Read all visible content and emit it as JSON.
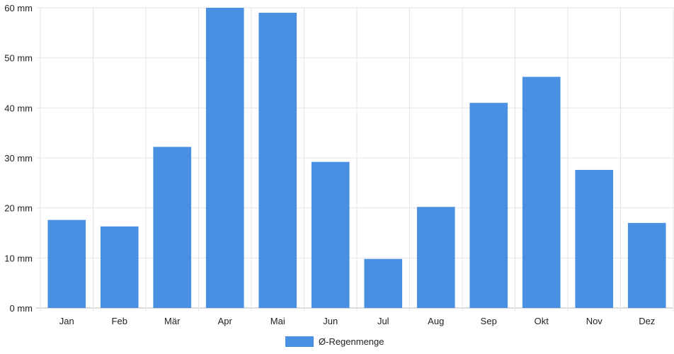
{
  "chart_data": {
    "type": "bar",
    "categories": [
      "Jan",
      "Feb",
      "Mär",
      "Apr",
      "Mai",
      "Jun",
      "Jul",
      "Aug",
      "Sep",
      "Okt",
      "Nov",
      "Dez"
    ],
    "series": [
      {
        "name": "Ø-Regenmenge",
        "color": "#4a90e2",
        "values": [
          17.6,
          16.3,
          32.2,
          60.0,
          59.0,
          29.2,
          9.8,
          20.2,
          41.0,
          46.2,
          27.6,
          17.0
        ]
      }
    ],
    "y_ticks": [
      "0 mm",
      "10 mm",
      "20 mm",
      "30 mm",
      "40 mm",
      "50 mm",
      "60 mm"
    ],
    "ylim": [
      0,
      60
    ],
    "y_unit": "mm",
    "grid": true,
    "legend_position": "bottom"
  }
}
